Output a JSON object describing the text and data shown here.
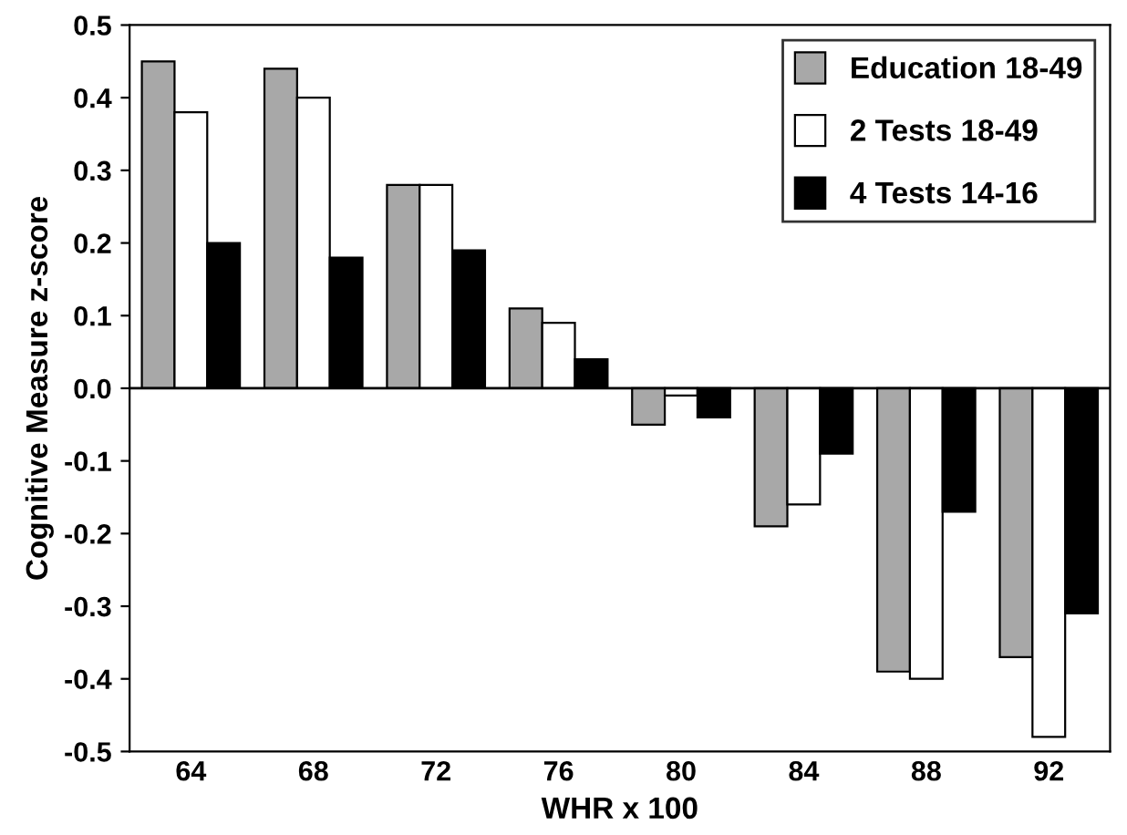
{
  "chart_data": {
    "type": "bar",
    "xlabel": "WHR x 100",
    "ylabel": "Cognitive Measure z-score",
    "categories": [
      "64",
      "68",
      "72",
      "76",
      "80",
      "84",
      "88",
      "92"
    ],
    "series": [
      {
        "name": "Education 18-49",
        "color": "#a8a8a8",
        "values": [
          0.45,
          0.44,
          0.28,
          0.11,
          -0.05,
          -0.19,
          -0.39,
          -0.37
        ]
      },
      {
        "name": "2 Tests 18-49",
        "color": "#ffffff",
        "values": [
          0.38,
          0.4,
          0.28,
          0.09,
          -0.01,
          -0.16,
          -0.4,
          -0.48
        ]
      },
      {
        "name": "4 Tests 14-16",
        "color": "#000000",
        "values": [
          0.2,
          0.18,
          0.19,
          0.04,
          -0.04,
          -0.09,
          -0.17,
          -0.31
        ]
      }
    ],
    "ylim": [
      -0.5,
      0.5
    ],
    "yticks": [
      -0.5,
      -0.4,
      -0.3,
      -0.2,
      -0.1,
      {
        "value": 0,
        "label": "0.0"
      },
      0.1,
      0.2,
      0.3,
      0.4,
      0.5
    ],
    "legend": "top right"
  }
}
